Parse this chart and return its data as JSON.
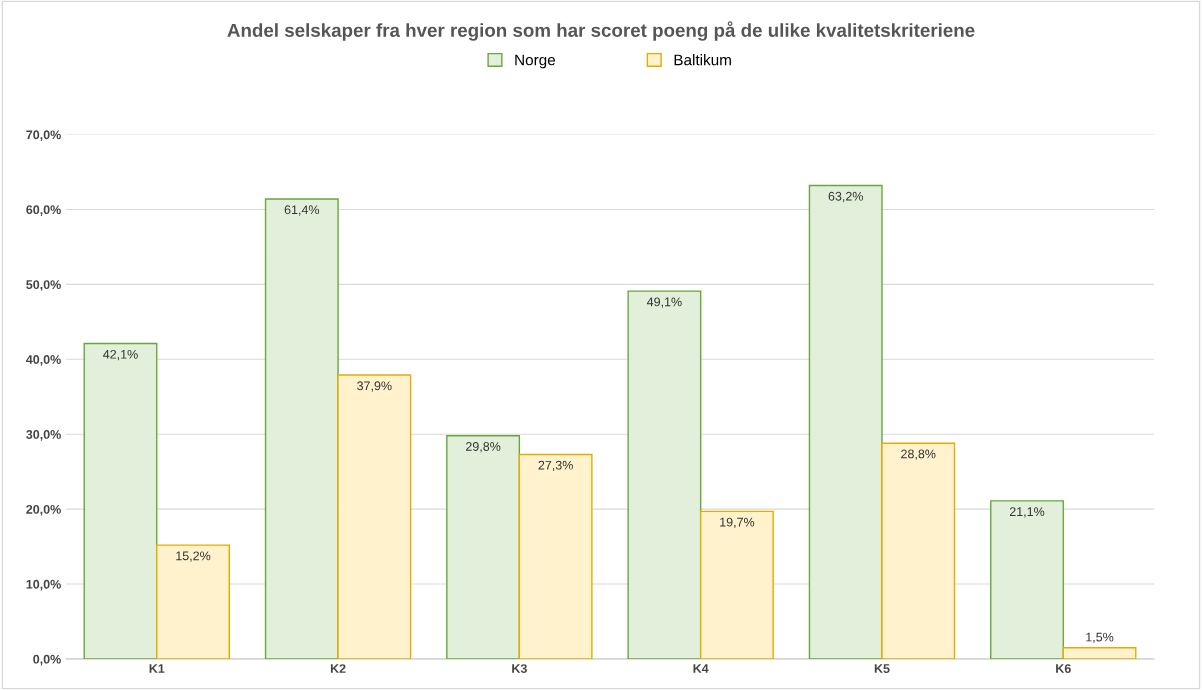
{
  "chart_data": {
    "type": "bar",
    "title": "Andel selskaper fra hver region som har scoret poeng på de ulike kvalitetskriteriene",
    "categories": [
      "K1",
      "K2",
      "K3",
      "K4",
      "K5",
      "K6"
    ],
    "series": [
      {
        "name": "Norge",
        "color": "#e2efda",
        "values": [
          42.1,
          61.4,
          29.8,
          49.1,
          63.2,
          21.1
        ],
        "value_labels": [
          "42,1%",
          "61,4%",
          "29,8%",
          "49,1%",
          "63,2%",
          "21,1%"
        ]
      },
      {
        "name": "Baltikum",
        "color": "#fff2cc",
        "values": [
          15.2,
          37.9,
          27.3,
          19.7,
          28.8,
          1.5
        ],
        "value_labels": [
          "15,2%",
          "37,9%",
          "27,3%",
          "19,7%",
          "28,8%",
          "1,5%"
        ]
      }
    ],
    "ylim": [
      0,
      70
    ],
    "yticks": [
      {
        "value": 0,
        "label": "0,0%"
      },
      {
        "value": 10,
        "label": "10,0%"
      },
      {
        "value": 20,
        "label": "20,0%"
      },
      {
        "value": 30,
        "label": "30,0%"
      },
      {
        "value": 40,
        "label": "40,0%"
      },
      {
        "value": 50,
        "label": "50,0%"
      },
      {
        "value": 60,
        "label": "60,0%"
      },
      {
        "value": 70,
        "label": "70,0%"
      }
    ],
    "grid": "y",
    "legend": "top"
  }
}
